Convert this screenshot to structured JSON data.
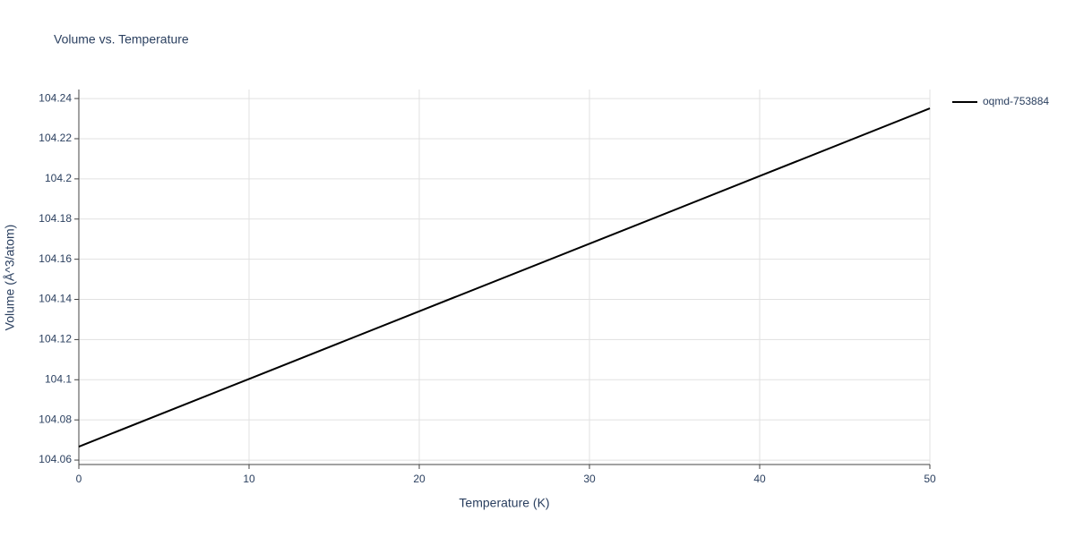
{
  "chart_data": {
    "type": "line",
    "title": "Volume vs. Temperature",
    "x_label": "Temperature (K)",
    "y_label": "Volume (Å^3/atom)",
    "x": [
      0,
      10,
      20,
      30,
      40,
      50
    ],
    "series": [
      {
        "name": "oqmd-753884",
        "color": "#000000",
        "values": [
          104.0667,
          104.1004,
          104.1341,
          104.1677,
          104.2014,
          104.2351
        ]
      }
    ],
    "xlim": [
      0,
      50
    ],
    "xticks": [
      0,
      10,
      20,
      30,
      40,
      50
    ],
    "ylim": [
      104.0578,
      104.2445
    ],
    "yticks": [
      104.06,
      104.08,
      104.1,
      104.12,
      104.14,
      104.16,
      104.18,
      104.2,
      104.22,
      104.24
    ],
    "grid": true,
    "legend": "top-right"
  }
}
